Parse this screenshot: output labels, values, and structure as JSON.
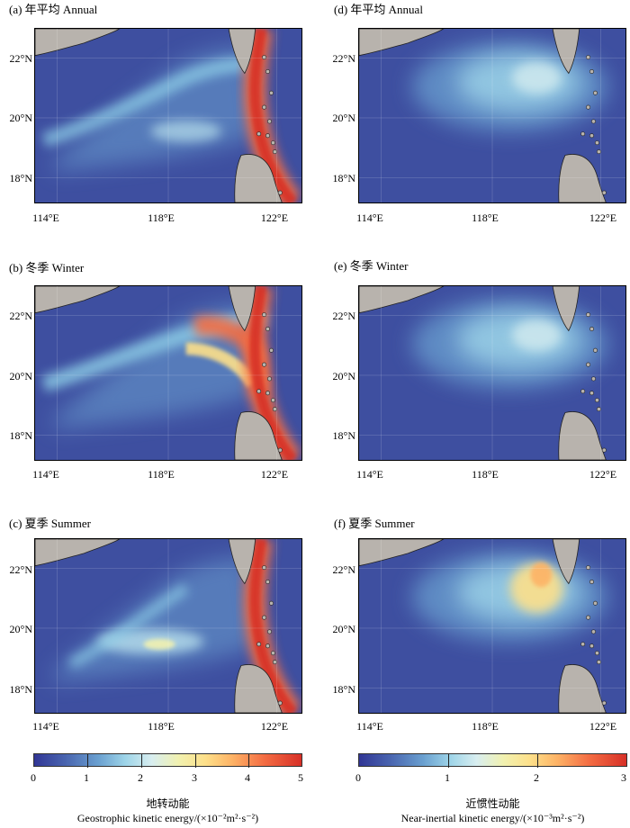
{
  "panels": [
    {
      "title": "(a) 年平均 Annual",
      "field": "geostrophic",
      "season": "annual"
    },
    {
      "title": "(d) 年平均 Annual",
      "field": "near_inertial",
      "season": "annual"
    },
    {
      "title": "(b) 冬季 Winter",
      "field": "geostrophic",
      "season": "winter"
    },
    {
      "title": "(e) 冬季 Winter",
      "field": "near_inertial",
      "season": "winter"
    },
    {
      "title": "(c) 夏季 Summer",
      "field": "geostrophic",
      "season": "summer"
    },
    {
      "title": "(f) 夏季 Summer",
      "field": "near_inertial",
      "season": "summer"
    }
  ],
  "axes": {
    "lat_labels": [
      "22°N",
      "20°N",
      "18°N"
    ],
    "lon_labels": [
      "114°E",
      "118°E",
      "122°E"
    ]
  },
  "colorbars": [
    {
      "ticks": [
        "0",
        "1",
        "2",
        "3",
        "4",
        "5"
      ],
      "title_cn": "地转动能",
      "title_en": "Geostrophic kinetic energy/(×10⁻²m²·s⁻²)"
    },
    {
      "ticks": [
        "0",
        "1",
        "2",
        "3"
      ],
      "title_cn": "近惯性动能",
      "title_en": "Near-inertial kinetic energy/(×10⁻³m²·s⁻²)"
    }
  ],
  "colors": {
    "ocean_low": "#3e4fa0",
    "ocean_mid": "#7fc8e6",
    "mid_high": "#f4f0a8",
    "high": "#d73027",
    "land": "#b8b3ad"
  }
}
